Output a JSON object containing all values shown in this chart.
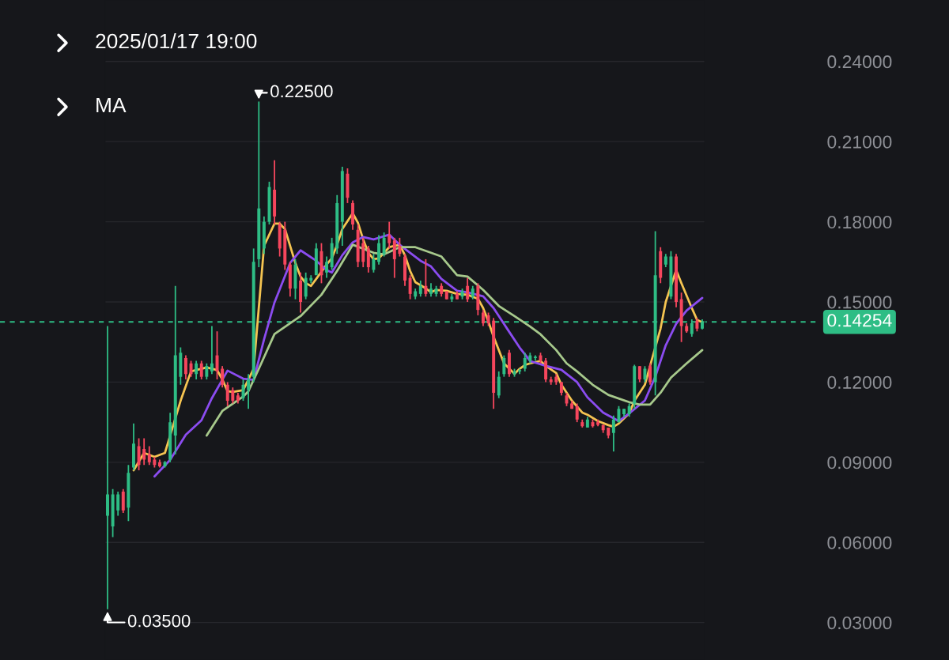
{
  "chart_data": {
    "type": "candlestick",
    "categories": [
      null,
      null,
      null,
      null,
      null,
      null,
      null,
      null,
      null,
      null,
      null,
      null,
      null,
      null,
      null,
      null,
      null,
      null,
      null,
      null,
      null,
      null,
      null,
      null,
      null,
      null,
      null,
      null,
      null,
      null,
      null,
      null,
      null,
      null,
      null,
      null,
      null,
      null,
      null,
      null,
      null,
      null,
      null,
      null,
      null,
      null,
      null,
      null,
      null,
      null,
      null,
      null,
      null,
      null,
      null,
      null,
      null,
      null,
      null,
      null,
      null,
      null,
      null,
      null,
      null,
      null,
      null,
      null,
      null,
      null,
      null,
      null,
      null,
      null,
      null,
      null,
      null,
      null,
      null,
      null,
      null,
      null,
      null,
      null,
      null,
      null,
      null,
      null,
      null,
      null,
      null,
      null,
      null,
      null,
      null,
      null,
      null,
      null,
      null,
      null,
      null,
      null,
      null,
      null,
      null,
      null,
      null,
      null,
      null,
      null,
      null,
      null,
      null,
      null,
      null
    ],
    "ohlc": [
      [
        0.07,
        0.141,
        0.035,
        0.078
      ],
      [
        0.066,
        0.08,
        0.062,
        0.078
      ],
      [
        0.072,
        0.079,
        0.07,
        0.078
      ],
      [
        0.079,
        0.08,
        0.071,
        0.072
      ],
      [
        0.073,
        0.089,
        0.068,
        0.086
      ],
      [
        0.088,
        0.1045,
        0.087,
        0.097
      ],
      [
        0.096,
        0.099,
        0.087,
        0.089
      ],
      [
        0.095,
        0.099,
        0.089,
        0.091
      ],
      [
        0.093,
        0.096,
        0.089,
        0.09
      ],
      [
        0.091,
        0.092,
        0.088,
        0.089
      ],
      [
        0.09,
        0.091,
        0.088,
        0.0885
      ],
      [
        0.0885,
        0.0905,
        0.088,
        0.09
      ],
      [
        0.091,
        0.1085,
        0.09,
        0.105
      ],
      [
        0.1,
        0.156,
        0.093,
        0.13
      ],
      [
        0.122,
        0.133,
        0.119,
        0.131
      ],
      [
        0.129,
        0.13,
        0.121,
        0.123
      ],
      [
        0.127,
        0.128,
        0.122,
        0.123
      ],
      [
        0.123,
        0.128,
        0.121,
        0.127
      ],
      [
        0.127,
        0.128,
        0.121,
        0.122
      ],
      [
        0.122,
        0.127,
        0.121,
        0.126
      ],
      [
        0.124,
        0.141,
        0.123,
        0.127
      ],
      [
        0.13,
        0.139,
        0.121,
        0.124
      ],
      [
        0.125,
        0.126,
        0.118,
        0.119
      ],
      [
        0.119,
        0.12,
        0.111,
        0.113
      ],
      [
        0.117,
        0.118,
        0.112,
        0.113
      ],
      [
        0.115,
        0.116,
        0.112,
        0.113
      ],
      [
        0.114,
        0.121,
        0.113,
        0.119
      ],
      [
        0.117,
        0.123,
        0.11,
        0.121
      ],
      [
        0.122,
        0.17,
        0.12,
        0.165
      ],
      [
        0.166,
        0.225,
        0.163,
        0.185
      ],
      [
        0.17,
        0.182,
        0.168,
        0.18
      ],
      [
        0.18,
        0.195,
        0.179,
        0.193
      ],
      [
        0.192,
        0.203,
        0.179,
        0.182
      ],
      [
        0.179,
        0.18,
        0.167,
        0.17
      ],
      [
        0.177,
        0.18,
        0.162,
        0.164
      ],
      [
        0.164,
        0.165,
        0.152,
        0.155
      ],
      [
        0.155,
        0.166,
        0.151,
        0.164
      ],
      [
        0.158,
        0.161,
        0.146,
        0.15
      ],
      [
        0.152,
        0.161,
        0.151,
        0.159
      ],
      [
        0.158,
        0.16,
        0.157,
        0.159
      ],
      [
        0.16,
        0.172,
        0.16,
        0.17
      ],
      [
        0.169,
        0.172,
        0.157,
        0.16
      ],
      [
        0.161,
        0.167,
        0.159,
        0.165
      ],
      [
        0.163,
        0.174,
        0.162,
        0.172
      ],
      [
        0.17,
        0.19,
        0.168,
        0.187
      ],
      [
        0.18,
        0.2006,
        0.171,
        0.199
      ],
      [
        0.198,
        0.2,
        0.187,
        0.189
      ],
      [
        0.187,
        0.188,
        0.177,
        0.179
      ],
      [
        0.177,
        0.179,
        0.163,
        0.165
      ],
      [
        0.172,
        0.174,
        0.163,
        0.165
      ],
      [
        0.17,
        0.171,
        0.161,
        0.163
      ],
      [
        0.162,
        0.168,
        0.161,
        0.166
      ],
      [
        0.165,
        0.175,
        0.164,
        0.172
      ],
      [
        0.168,
        0.176,
        0.167,
        0.174
      ],
      [
        0.175,
        0.18,
        0.17,
        0.172
      ],
      [
        0.173,
        0.174,
        0.159,
        0.166
      ],
      [
        0.171,
        0.174,
        0.167,
        0.168
      ],
      [
        0.167,
        0.168,
        0.156,
        0.158
      ],
      [
        0.159,
        0.16,
        0.151,
        0.153
      ],
      [
        0.152,
        0.155,
        0.151,
        0.154
      ],
      [
        0.153,
        0.158,
        0.152,
        0.156
      ],
      [
        0.156,
        0.166,
        0.152,
        0.153
      ],
      [
        0.153,
        0.157,
        0.152,
        0.155
      ],
      [
        0.153,
        0.156,
        0.152,
        0.155
      ],
      [
        0.156,
        0.157,
        0.152,
        0.153
      ],
      [
        0.154,
        0.154,
        0.151,
        0.151
      ],
      [
        0.151,
        0.153,
        0.15,
        0.152
      ],
      [
        0.153,
        0.154,
        0.151,
        0.151
      ],
      [
        0.152,
        0.155,
        0.151,
        0.154
      ],
      [
        0.156,
        0.159,
        0.15,
        0.151
      ],
      [
        0.152,
        0.156,
        0.151,
        0.155
      ],
      [
        0.156,
        0.157,
        0.145,
        0.147
      ],
      [
        0.146,
        0.147,
        0.141,
        0.142
      ],
      [
        0.145,
        0.146,
        0.141,
        0.142
      ],
      [
        0.143,
        0.144,
        0.11,
        0.116
      ],
      [
        0.115,
        0.124,
        0.114,
        0.122
      ],
      [
        0.123,
        0.13,
        0.122,
        0.129
      ],
      [
        0.131,
        0.132,
        0.122,
        0.123
      ],
      [
        0.123,
        0.125,
        0.122,
        0.124
      ],
      [
        0.124,
        0.125,
        0.123,
        0.1245
      ],
      [
        0.125,
        0.131,
        0.124,
        0.129
      ],
      [
        0.128,
        0.131,
        0.127,
        0.13
      ],
      [
        0.129,
        0.13,
        0.128,
        0.1295
      ],
      [
        0.13,
        0.131,
        0.127,
        0.128
      ],
      [
        0.128,
        0.129,
        0.12,
        0.121
      ],
      [
        0.121,
        0.122,
        0.119,
        0.12
      ],
      [
        0.122,
        0.123,
        0.119,
        0.12
      ],
      [
        0.12,
        0.12,
        0.115,
        0.116
      ],
      [
        0.115,
        0.116,
        0.111,
        0.112
      ],
      [
        0.112,
        0.113,
        0.11,
        0.11
      ],
      [
        0.111,
        0.112,
        0.105,
        0.106
      ],
      [
        0.105,
        0.106,
        0.103,
        0.1035
      ],
      [
        0.103,
        0.107,
        0.103,
        0.106
      ],
      [
        0.105,
        0.106,
        0.103,
        0.1035
      ],
      [
        0.105,
        0.106,
        0.1035,
        0.104
      ],
      [
        0.104,
        0.104,
        0.101,
        0.102
      ],
      [
        0.103,
        0.103,
        0.099,
        0.1
      ],
      [
        0.101,
        0.1075,
        0.094,
        0.106
      ],
      [
        0.105,
        0.111,
        0.105,
        0.11
      ],
      [
        0.108,
        0.11,
        0.107,
        0.11
      ],
      [
        0.108,
        0.112,
        0.107,
        0.111
      ],
      [
        0.112,
        0.1265,
        0.11,
        0.126
      ],
      [
        0.126,
        0.126,
        0.12,
        0.121
      ],
      [
        0.121,
        0.126,
        0.12,
        0.125
      ],
      [
        0.126,
        0.127,
        0.119,
        0.12
      ],
      [
        0.12,
        0.1765,
        0.115,
        0.16
      ],
      [
        0.169,
        0.1705,
        0.157,
        0.159
      ],
      [
        0.164,
        0.168,
        0.163,
        0.167
      ],
      [
        0.152,
        0.169,
        0.151,
        0.167
      ],
      [
        0.167,
        0.168,
        0.148,
        0.15
      ],
      [
        0.151,
        0.1535,
        0.135,
        0.141
      ],
      [
        0.141,
        0.142,
        0.1385,
        0.139
      ],
      [
        0.138,
        0.1435,
        0.137,
        0.142
      ],
      [
        0.143,
        0.144,
        0.139,
        0.14
      ],
      [
        0.14,
        0.1435,
        0.1397,
        0.14254
      ]
    ],
    "colors": [
      "#2ebd85",
      "#2ebd85",
      "#2ebd85",
      "#f6465d",
      "#2ebd85",
      "#2ebd85",
      "#f6465d",
      "#f6465d",
      "#f6465d",
      "#f6465d",
      "#f6465d",
      "#2ebd85",
      "#2ebd85",
      "#2ebd85",
      "#2ebd85",
      "#f6465d",
      "#f6465d",
      "#2ebd85",
      "#f6465d",
      "#2ebd85",
      "#2ebd85",
      "#f6465d",
      "#f6465d",
      "#f6465d",
      "#f6465d",
      "#f6465d",
      "#2ebd85",
      "#2ebd85",
      "#2ebd85",
      "#2ebd85",
      "#2ebd85",
      "#2ebd85",
      "#f6465d",
      "#f6465d",
      "#f6465d",
      "#f6465d",
      "#2ebd85",
      "#f6465d",
      "#2ebd85",
      "#2ebd85",
      "#2ebd85",
      "#f6465d",
      "#2ebd85",
      "#2ebd85",
      "#2ebd85",
      "#2ebd85",
      "#f6465d",
      "#f6465d",
      "#f6465d",
      "#f6465d",
      "#f6465d",
      "#2ebd85",
      "#2ebd85",
      "#2ebd85",
      "#f6465d",
      "#f6465d",
      "#f6465d",
      "#f6465d",
      "#f6465d",
      "#2ebd85",
      "#2ebd85",
      "#f6465d",
      "#2ebd85",
      "#2ebd85",
      "#f6465d",
      "#f6465d",
      "#2ebd85",
      "#f6465d",
      "#2ebd85",
      "#f6465d",
      "#2ebd85",
      "#f6465d",
      "#f6465d",
      "#f6465d",
      "#f6465d",
      "#2ebd85",
      "#2ebd85",
      "#f6465d",
      "#2ebd85",
      "#2ebd85",
      "#2ebd85",
      "#2ebd85",
      "#2ebd85",
      "#f6465d",
      "#f6465d",
      "#f6465d",
      "#f6465d",
      "#f6465d",
      "#f6465d",
      "#f6465d",
      "#f6465d",
      "#f6465d",
      "#2ebd85",
      "#f6465d",
      "#f6465d",
      "#f6465d",
      "#f6465d",
      "#2ebd85",
      "#2ebd85",
      "#2ebd85",
      "#2ebd85",
      "#2ebd85",
      "#f6465d",
      "#2ebd85",
      "#f6465d",
      "#2ebd85",
      "#f6465d",
      "#2ebd85",
      "#2ebd85",
      "#f6465d",
      "#f6465d",
      "#f6465d",
      "#2ebd85",
      "#f6465d",
      "#2ebd85"
    ],
    "series": [
      {
        "type": "line",
        "color": "#f5c451",
        "values": [
          null,
          null,
          null,
          null,
          null,
          0.087,
          null,
          0.0935,
          null,
          0.092,
          null,
          0.0935,
          0.1,
          null,
          0.113,
          null,
          0.124,
          0.1245,
          null,
          0.1255,
          null,
          0.1245,
          0.121,
          0.1166,
          0.1163,
          null,
          0.117,
          null,
          0.125,
          null,
          0.171,
          null,
          0.1793,
          0.1793,
          0.1773,
          null,
          0.1646,
          0.1595,
          0.157,
          0.156,
          0.1586,
          null,
          0.164,
          0.1664,
          0.1714,
          0.1773,
          null,
          0.1832,
          0.1796,
          0.1734,
          0.1684,
          0.166,
          0.1663,
          0.1684,
          0.1705,
          null,
          0.1714,
          0.1675,
          0.1616,
          0.1574,
          null,
          0.1551,
          0.1536,
          0.1545,
          null,
          0.1542,
          null,
          0.153,
          null,
          0.1527,
          null,
          0.1512,
          0.1477,
          0.1427,
          0.137,
          null,
          0.127,
          null,
          0.1231,
          0.125,
          0.1264,
          0.127,
          null,
          0.1279,
          0.1261,
          null,
          0.1234,
          0.119,
          null,
          0.1131,
          null,
          0.1086,
          0.1078,
          null,
          0.1054,
          null,
          0.1039,
          0.1033,
          0.1045,
          null,
          0.1083,
          0.113,
          null,
          0.119,
          0.1261,
          null,
          0.14,
          0.15,
          null,
          0.1619,
          0.157,
          null,
          0.1477,
          0.1433,
          0.1424
        ]
      },
      {
        "type": "line",
        "color": "#8b4cf0",
        "values": [
          null,
          null,
          null,
          null,
          null,
          null,
          null,
          null,
          null,
          0.0847,
          null,
          null,
          0.0909,
          null,
          null,
          0.1003,
          null,
          null,
          0.1057,
          null,
          0.114,
          null,
          null,
          0.1243,
          null,
          null,
          0.1213,
          null,
          0.1208,
          null,
          0.136,
          null,
          0.1498,
          null,
          null,
          0.1646,
          null,
          0.1693,
          null,
          null,
          0.1654,
          null,
          0.1619,
          0.161,
          null,
          0.1675,
          null,
          0.1723,
          null,
          0.1743,
          null,
          0.1734,
          null,
          null,
          0.1752,
          null,
          0.1714,
          null,
          0.1684,
          null,
          0.1654,
          null,
          0.1633,
          null,
          0.1586,
          null,
          null,
          0.1542,
          null,
          0.1536,
          null,
          null,
          0.1521,
          null,
          0.1477,
          null,
          null,
          0.1388,
          null,
          0.1329,
          null,
          0.1279,
          null,
          null,
          0.1261,
          null,
          null,
          0.1246,
          null,
          null,
          0.12,
          null,
          0.1143,
          null,
          null,
          0.1086,
          null,
          null,
          0.1054,
          null,
          0.1083,
          null,
          null,
          0.1131,
          null,
          0.122,
          null,
          0.1338,
          null,
          0.1418,
          null,
          0.1468,
          null,
          null,
          0.1515
        ]
      },
      {
        "type": "line",
        "color": "#a7c98c",
        "values": [
          null,
          null,
          null,
          null,
          null,
          null,
          null,
          null,
          null,
          null,
          null,
          null,
          null,
          null,
          null,
          null,
          null,
          null,
          null,
          0.1,
          null,
          null,
          0.1092,
          null,
          null,
          null,
          0.1146,
          0.1166,
          null,
          0.125,
          null,
          null,
          0.138,
          null,
          null,
          null,
          null,
          0.1447,
          null,
          null,
          null,
          0.1527,
          null,
          null,
          0.1616,
          null,
          null,
          0.1714,
          null,
          null,
          null,
          0.1684,
          null,
          0.1678,
          null,
          null,
          0.1705,
          null,
          null,
          0.1705,
          null,
          null,
          0.1684,
          null,
          0.167,
          null,
          null,
          0.16,
          null,
          0.1595,
          null,
          null,
          0.1545,
          null,
          null,
          0.1485,
          null,
          null,
          0.1447,
          null,
          null,
          0.1408,
          null,
          0.1379,
          null,
          null,
          0.132,
          null,
          0.127,
          null,
          0.124,
          null,
          null,
          0.119,
          null,
          null,
          0.1152,
          null,
          null,
          null,
          0.1125,
          null,
          0.1116,
          null,
          0.1116,
          null,
          0.116,
          null,
          0.1217,
          null,
          null,
          0.127,
          null,
          null,
          0.132
        ]
      }
    ],
    "ylim": [
      0.016,
      0.263
    ],
    "yticks": [
      {
        "value": 0.03,
        "label": "0.03000"
      },
      {
        "value": 0.06,
        "label": "0.06000"
      },
      {
        "value": 0.09,
        "label": "0.09000"
      },
      {
        "value": 0.12,
        "label": "0.12000"
      },
      {
        "value": 0.15,
        "label": "0.15000"
      },
      {
        "value": 0.18,
        "label": "0.18000"
      },
      {
        "value": 0.21,
        "label": "0.21000"
      },
      {
        "value": 0.24,
        "label": "0.24000"
      }
    ],
    "ref_lines": [
      {
        "axis": "y",
        "value": 0.14254,
        "label": "0.14254",
        "color": "#2ebd85",
        "line_style": "dashed"
      }
    ],
    "annotations": [
      "2025/01/17 19:00",
      "MA",
      "0.22500",
      "0.03500"
    ],
    "grid": "y"
  }
}
